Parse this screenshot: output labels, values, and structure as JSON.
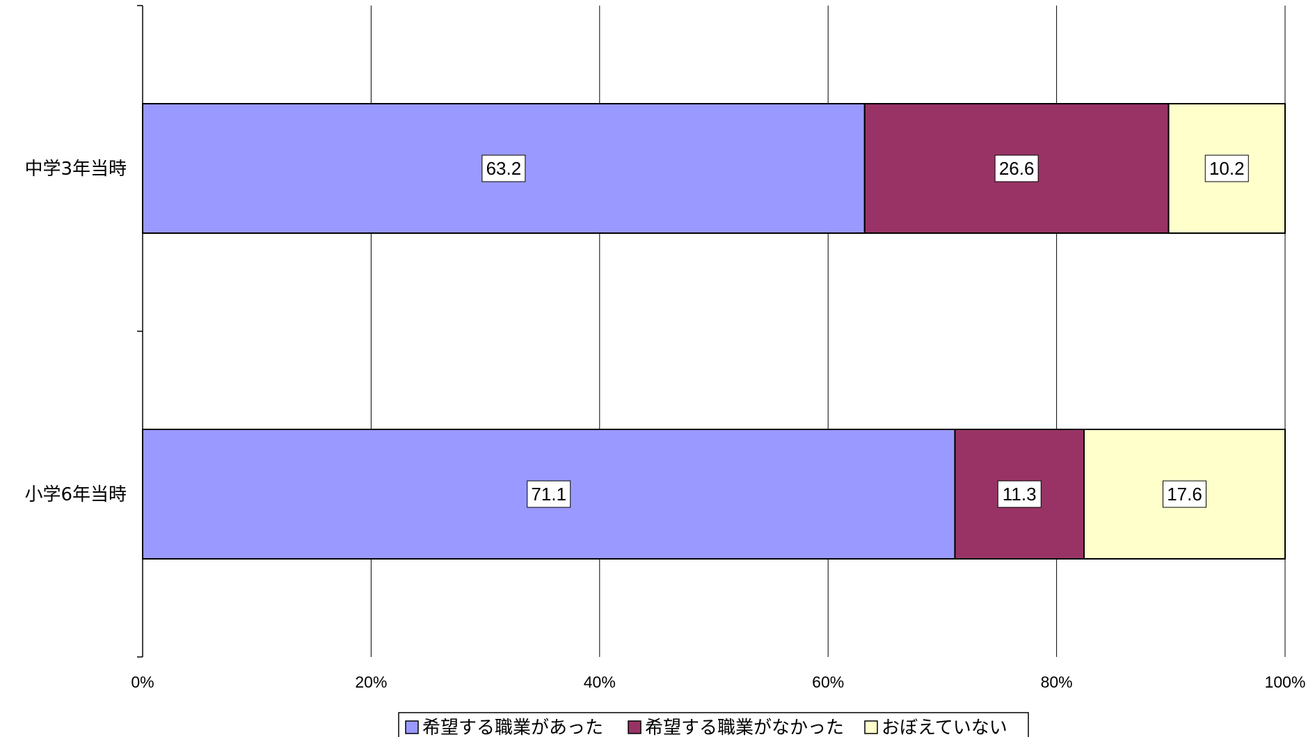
{
  "chart_data": {
    "type": "bar",
    "orientation": "horizontal",
    "stacked": "percent",
    "categories": [
      "中学3年当時",
      "小学6年当時"
    ],
    "series": [
      {
        "name": "希望する職業があった",
        "color": "#9999ff",
        "values": [
          63.2,
          71.1
        ]
      },
      {
        "name": "希望する職業がなかった",
        "color": "#993366",
        "values": [
          26.6,
          11.3
        ]
      },
      {
        "name": "おぼえていない",
        "color": "#ffffcc",
        "values": [
          10.2,
          17.6
        ]
      }
    ],
    "xlim": [
      0,
      100
    ],
    "xticks": [
      "0%",
      "20%",
      "40%",
      "60%",
      "80%",
      "100%"
    ],
    "grid": true,
    "legend": "bottom"
  }
}
